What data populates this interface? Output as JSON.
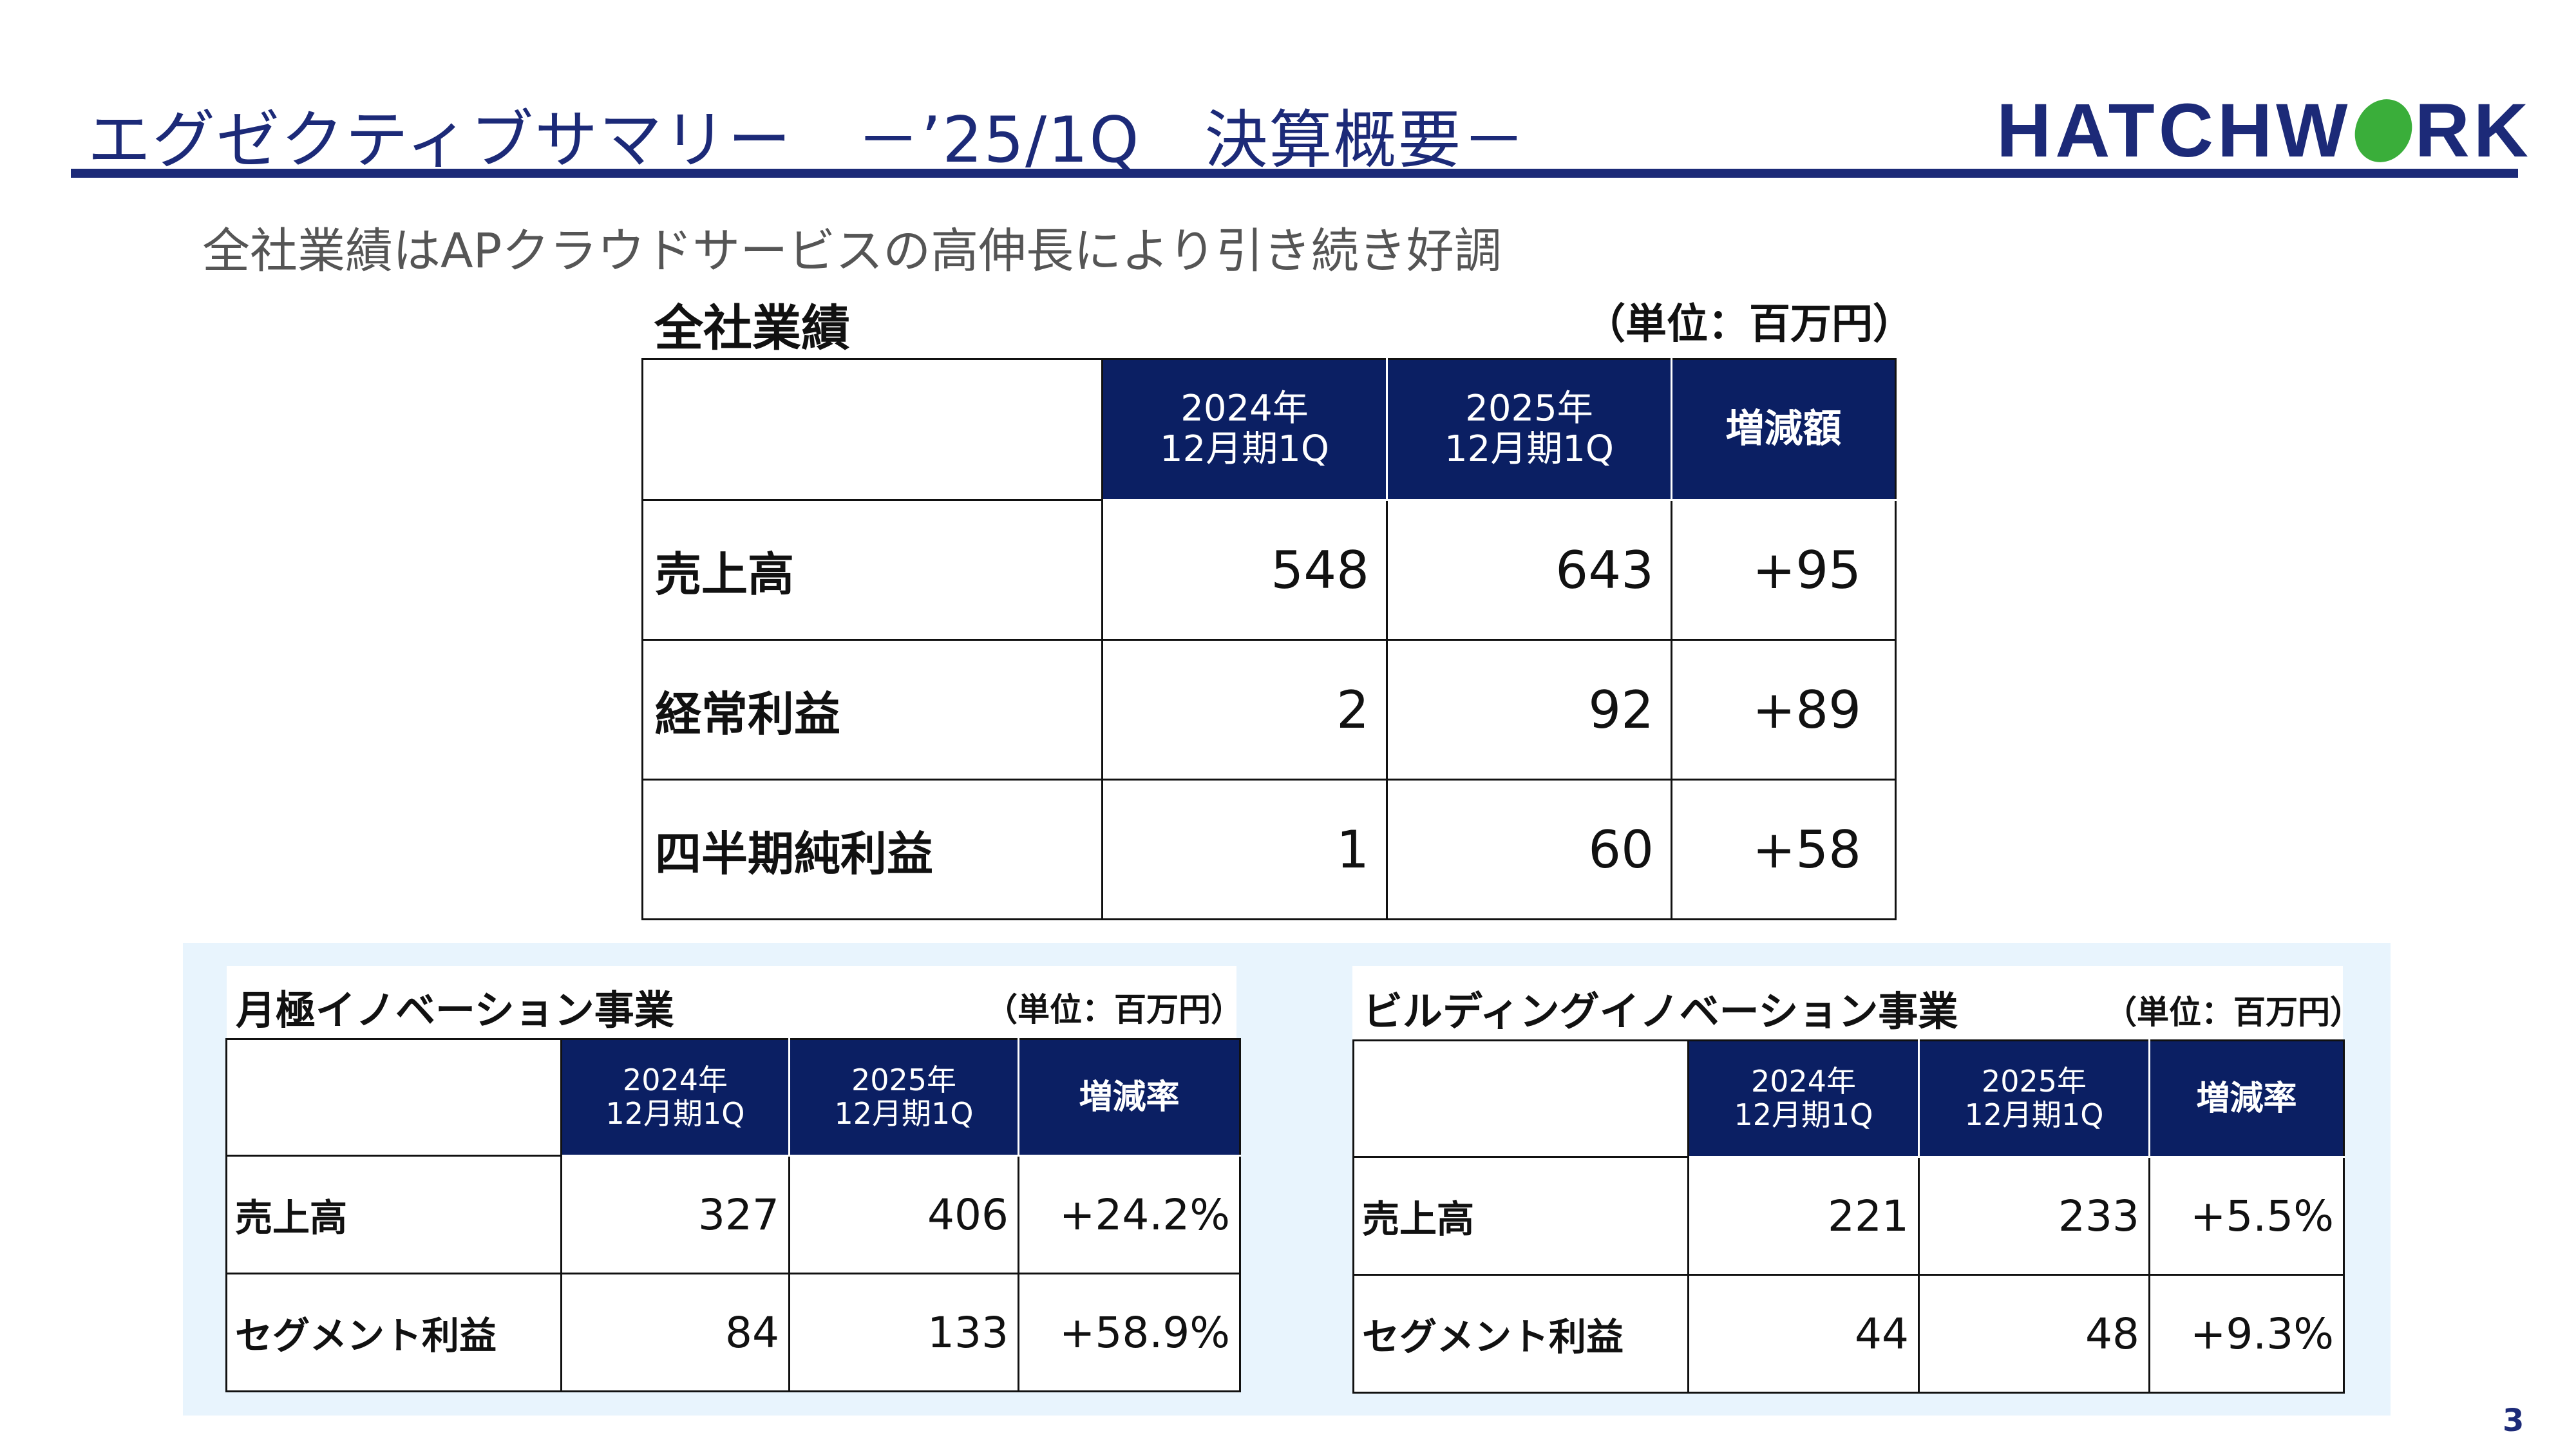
{
  "header": {
    "title": "エグゼクティブサマリー　－’25/1Q　決算概要－",
    "logo_text_left": "HATCHW",
    "logo_text_right": "RK",
    "subtitle": "全社業績はAPクラウドサービスの高伸長により引き続き好調"
  },
  "main_table": {
    "caption": "全社業績",
    "unit": "（単位：百万円）",
    "headers": [
      "2024年\n12月期1Q",
      "2025年\n12月期1Q",
      "増減額"
    ],
    "rows": [
      {
        "label": "売上高",
        "y2024": "548",
        "y2025": "643",
        "diff": "+95"
      },
      {
        "label": "経常利益",
        "y2024": "2",
        "y2025": "92",
        "diff": "+89"
      },
      {
        "label": "四半期純利益",
        "y2024": "1",
        "y2025": "60",
        "diff": "+58"
      }
    ]
  },
  "segment_a": {
    "caption": "月極イノベーション事業",
    "unit": "（単位：百万円）",
    "headers": [
      "2024年\n12月期1Q",
      "2025年\n12月期1Q",
      "増減率"
    ],
    "rows": [
      {
        "label": "売上高",
        "y2024": "327",
        "y2025": "406",
        "rate": "+24.2%"
      },
      {
        "label": "セグメント利益",
        "y2024": "84",
        "y2025": "133",
        "rate": "+58.9%"
      }
    ]
  },
  "segment_b": {
    "caption": "ビルディングイノベーション事業",
    "unit": "（単位：百万円）",
    "headers": [
      "2024年\n12月期1Q",
      "2025年\n12月期1Q",
      "増減率"
    ],
    "rows": [
      {
        "label": "売上高",
        "y2024": "221",
        "y2025": "233",
        "rate": "+5.5%"
      },
      {
        "label": "セグメント利益",
        "y2024": "44",
        "y2025": "48",
        "rate": "+9.3%"
      }
    ]
  },
  "page_number": "3",
  "colors": {
    "navy": "#1c2a78",
    "header_fill": "#0b1f63",
    "logo_green": "#3aae3a",
    "panel_bg": "#e8f4fd"
  }
}
